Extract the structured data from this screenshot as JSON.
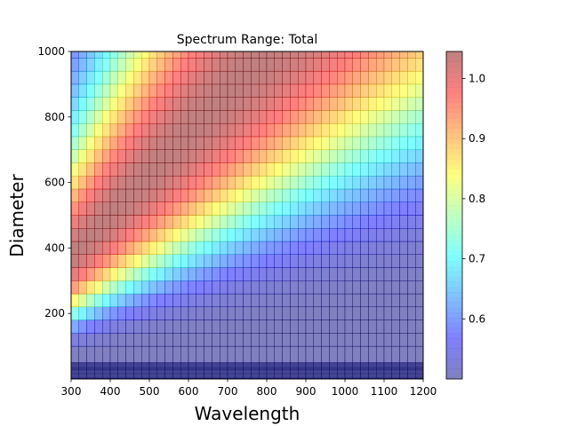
{
  "chart_data": {
    "type": "heatmap",
    "title": "Spectrum Range: Total",
    "xlabel": "Wavelength",
    "ylabel": "Diameter",
    "xlim": [
      300,
      1200
    ],
    "ylim": [
      0,
      1000
    ],
    "x_ticks": [
      "300",
      "400",
      "500",
      "600",
      "700",
      "800",
      "900",
      "1000",
      "1100",
      "1200"
    ],
    "y_ticks": [
      "200",
      "400",
      "600",
      "800",
      "1000"
    ],
    "colorbar": {
      "colormap": "jet",
      "alpha": 0.5,
      "range": [
        0.5,
        1.045
      ],
      "ticks": [
        "0.6",
        "0.7",
        "0.8",
        "0.9",
        "1.0"
      ]
    },
    "x_edges": [
      300,
      1200
    ],
    "x_cell_count": 45,
    "y_edges": [
      0,
      50,
      100,
      140,
      180,
      220,
      260,
      300,
      340,
      380,
      420,
      460,
      500,
      540,
      580,
      620,
      660,
      700,
      740,
      780,
      820,
      860,
      900,
      940,
      980,
      1000
    ],
    "value_model": "v(x, d) = 0.5 + 0.545 * exp(-(ln(d / (1.25x)))^2 / 0.5)"
  }
}
